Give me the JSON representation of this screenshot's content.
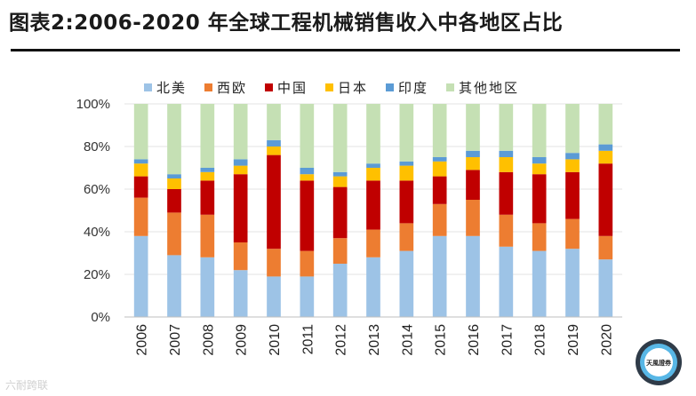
{
  "title": "图表2:2006-2020 年全球工程机械销售收入中各地区占比",
  "watermark": "六耐跨联",
  "logo_text": "天風證券",
  "chart_data": {
    "type": "bar",
    "stacked": true,
    "title": "图表2:2006-2020 年全球工程机械销售收入中各地区占比",
    "xlabel": "",
    "ylabel": "",
    "ylim": [
      0,
      100
    ],
    "yticks": [
      "0%",
      "20%",
      "40%",
      "60%",
      "80%",
      "100%"
    ],
    "legend_position": "top",
    "categories": [
      "2006",
      "2007",
      "2008",
      "2009",
      "2010",
      "2011",
      "2012",
      "2013",
      "2014",
      "2015",
      "2016",
      "2017",
      "2018",
      "2019",
      "2020"
    ],
    "series": [
      {
        "name": "北美",
        "color": "#9dc3e6",
        "values": [
          38,
          29,
          28,
          22,
          19,
          19,
          25,
          28,
          31,
          38,
          38,
          33,
          31,
          32,
          27
        ]
      },
      {
        "name": "西欧",
        "color": "#ed7d31",
        "values": [
          18,
          20,
          20,
          13,
          13,
          12,
          12,
          13,
          13,
          15,
          17,
          15,
          13,
          14,
          11
        ]
      },
      {
        "name": "中国",
        "color": "#c00000",
        "values": [
          10,
          11,
          16,
          32,
          44,
          33,
          24,
          23,
          20,
          13,
          14,
          20,
          23,
          22,
          34
        ]
      },
      {
        "name": "日本",
        "color": "#ffc000",
        "values": [
          6,
          5,
          4,
          4,
          4,
          3,
          5,
          6,
          7,
          7,
          6,
          7,
          5,
          6,
          6
        ]
      },
      {
        "name": "印度",
        "color": "#5b9bd5",
        "values": [
          2,
          2,
          2,
          3,
          3,
          3,
          2,
          2,
          2,
          2,
          3,
          3,
          3,
          3,
          3
        ]
      },
      {
        "name": "其他地区",
        "color": "#c5e0b4",
        "values": [
          26,
          33,
          30,
          26,
          17,
          30,
          32,
          28,
          27,
          25,
          22,
          22,
          25,
          23,
          19
        ]
      }
    ]
  }
}
